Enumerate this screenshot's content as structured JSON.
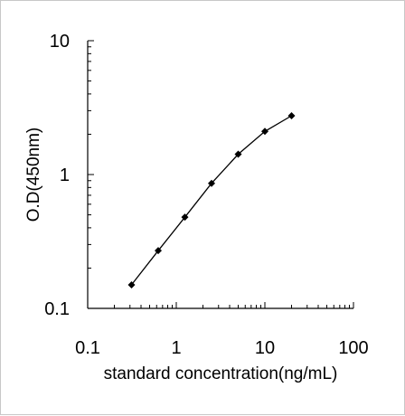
{
  "chart_data": {
    "type": "line",
    "title": "",
    "xlabel": "standard concentration(ng/mL)",
    "ylabel": "O.D(450nm)",
    "x_scale": "log",
    "y_scale": "log",
    "xlim": [
      0.1,
      100
    ],
    "ylim": [
      0.1,
      10
    ],
    "x_ticks": [
      "0.1",
      "1",
      "10",
      "100"
    ],
    "y_ticks": [
      "0.1",
      "1",
      "10"
    ],
    "grid": false,
    "legend": "none",
    "marker": "diamond",
    "line_color": "#000000",
    "series": [
      {
        "x": [
          0.3125,
          0.625,
          1.25,
          2.5,
          5,
          10,
          20
        ],
        "y": [
          0.15,
          0.27,
          0.48,
          0.86,
          1.42,
          2.1,
          2.75
        ]
      }
    ]
  }
}
